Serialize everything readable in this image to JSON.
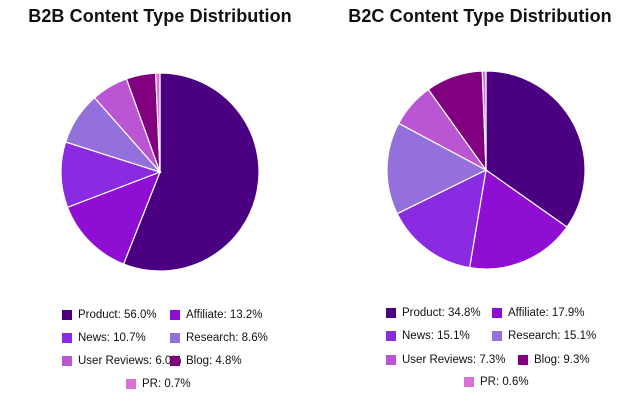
{
  "chart_data": [
    {
      "type": "pie",
      "title": "B2B Content Type Distribution",
      "legend_position": "bottom",
      "slices": [
        {
          "label": "Product",
          "value": 56.0,
          "legend": "Product: 56.0%",
          "color": "#4b0082"
        },
        {
          "label": "Affiliate",
          "value": 13.2,
          "legend": "Affiliate: 13.2%",
          "color": "#8e0ed4"
        },
        {
          "label": "News",
          "value": 10.7,
          "legend": "News: 10.7%",
          "color": "#8a2be2"
        },
        {
          "label": "Research",
          "value": 8.6,
          "legend": "Research: 8.6%",
          "color": "#9370db"
        },
        {
          "label": "User Reviews",
          "value": 6.0,
          "legend": "User Reviews: 6.0%",
          "color": "#ba55d3"
        },
        {
          "label": "Blog",
          "value": 4.8,
          "legend": "Blog: 4.8%",
          "color": "#800080"
        },
        {
          "label": "PR",
          "value": 0.7,
          "legend": "PR: 0.7%",
          "color": "#da70d6"
        }
      ]
    },
    {
      "type": "pie",
      "title": "B2C Content Type Distribution",
      "legend_position": "bottom",
      "slices": [
        {
          "label": "Product",
          "value": 34.8,
          "legend": "Product: 34.8%",
          "color": "#4b0082"
        },
        {
          "label": "Affiliate",
          "value": 17.9,
          "legend": "Affiliate: 17.9%",
          "color": "#8e0ed4"
        },
        {
          "label": "News",
          "value": 15.1,
          "legend": "News: 15.1%",
          "color": "#8a2be2"
        },
        {
          "label": "Research",
          "value": 15.1,
          "legend": "Research: 15.1%",
          "color": "#9370db"
        },
        {
          "label": "User Reviews",
          "value": 7.3,
          "legend": "User Reviews: 7.3%",
          "color": "#ba55d3"
        },
        {
          "label": "Blog",
          "value": 9.3,
          "legend": "Blog: 9.3%",
          "color": "#800080"
        },
        {
          "label": "PR",
          "value": 0.6,
          "legend": "PR: 0.6%",
          "color": "#da70d6"
        }
      ]
    }
  ]
}
